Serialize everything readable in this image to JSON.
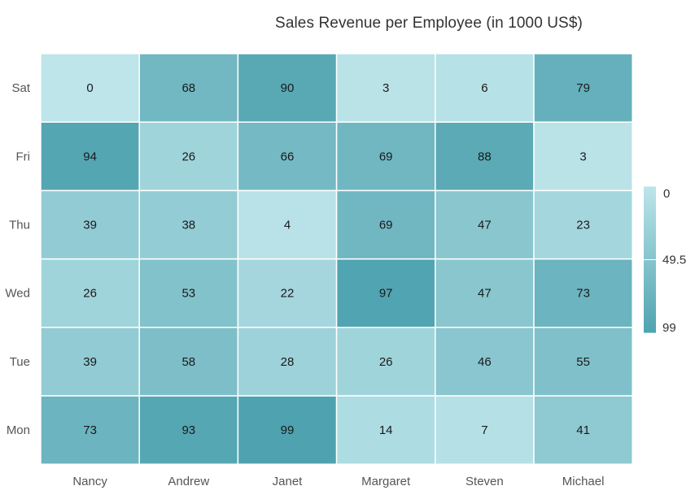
{
  "chart_data": {
    "type": "heatmap",
    "title": "Sales Revenue per Employee (in 1000 US$)",
    "x_categories": [
      "Nancy",
      "Andrew",
      "Janet",
      "Margaret",
      "Steven",
      "Michael"
    ],
    "y_categories": [
      "Mon",
      "Tue",
      "Wed",
      "Thu",
      "Fri",
      "Sat"
    ],
    "values": [
      [
        73,
        39,
        26,
        39,
        94,
        0
      ],
      [
        93,
        58,
        53,
        38,
        26,
        68
      ],
      [
        99,
        28,
        22,
        4,
        66,
        90
      ],
      [
        14,
        26,
        97,
        69,
        69,
        3
      ],
      [
        7,
        46,
        47,
        47,
        88,
        6
      ],
      [
        41,
        55,
        73,
        23,
        3,
        79
      ]
    ],
    "colorscale": {
      "min": 0,
      "max": 99,
      "min_color": "#bde5ea",
      "max_color": "#4fa3b0",
      "ticks": [
        "0",
        "49.5",
        "99"
      ]
    },
    "cell_border_color": "#ffffff",
    "legend_position": "right",
    "data_labels": true
  }
}
